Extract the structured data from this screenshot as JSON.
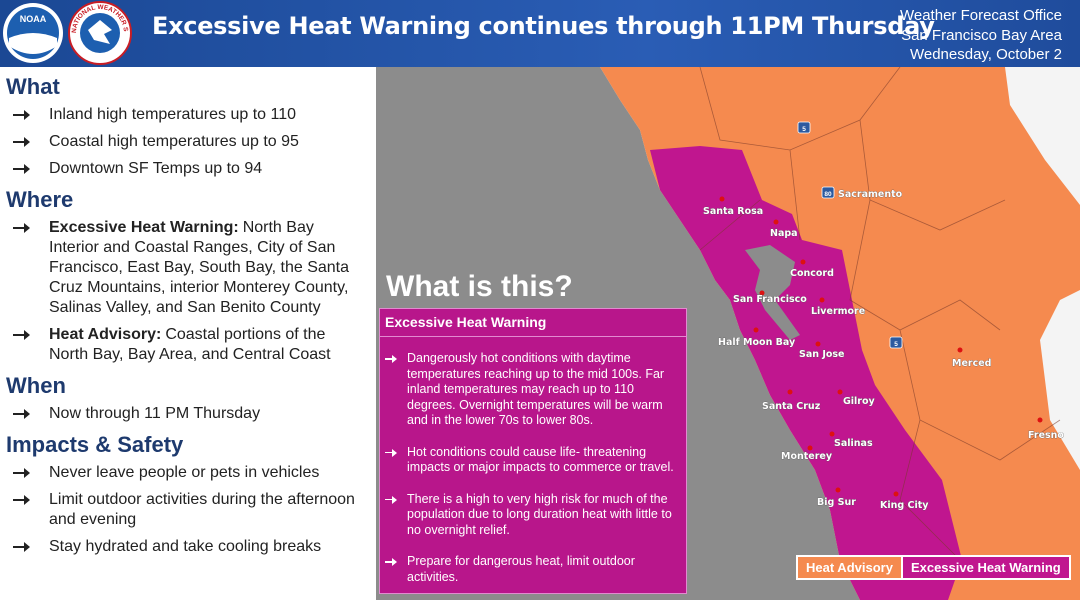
{
  "header": {
    "logos": {
      "noaa": "NOAA",
      "nws": "NATIONAL WEATHER SERVICE"
    },
    "title": "Excessive Heat Warning continues through 11PM Thursday",
    "office": [
      "Weather Forecast Office",
      "San Francisco Bay Area",
      "Wednesday, October 2"
    ]
  },
  "sections": [
    {
      "heading": "What",
      "items": [
        {
          "text": "Inland high temperatures up to 110"
        },
        {
          "text": "Coastal high temperatures up to 95"
        },
        {
          "text": "Downtown SF Temps up to 94"
        }
      ]
    },
    {
      "heading": "Where",
      "items": [
        {
          "bold": "Excessive Heat Warning:",
          "text": "North Bay Interior and Coastal Ranges, City of San Francisco, East Bay, South Bay, the Santa Cruz Mountains, interior Monterey County, Salinas Valley, and San Benito County"
        },
        {
          "bold": "Heat Advisory:",
          "text": "Coastal portions of the North Bay, Bay Area, and Central Coast"
        }
      ]
    },
    {
      "heading": "When",
      "items": [
        {
          "text": "Now through 11 PM Thursday"
        }
      ]
    },
    {
      "heading": "Impacts & Safety",
      "items": [
        {
          "text": "Never leave people or pets in vehicles"
        },
        {
          "text": "Limit outdoor activities during the afternoon and evening"
        },
        {
          "text": "Stay hydrated and take cooling breaks"
        }
      ]
    }
  ],
  "map": {
    "callout": "What is this?",
    "info_box": {
      "title": "Excessive Heat Warning",
      "items": [
        "Dangerously hot conditions with daytime temperatures reaching up to the mid 100s. Far inland temperatures may reach up to 110 degrees. Overnight temperatures will be warm and  in the lower 70s to lower 80s.",
        "Hot conditions could cause life- threatening impacts or major impacts to commerce or travel.",
        "There is a high to very high risk for much of the population due to long duration heat with little to no overnight relief.",
        "Prepare for dangerous heat, limit outdoor activities."
      ]
    },
    "cities": [
      "Santa Rosa",
      "Napa",
      "Sacramento",
      "Concord",
      "San Francisco",
      "Livermore",
      "Half Moon Bay",
      "San Jose",
      "Merced",
      "Santa Cruz",
      "Gilroy",
      "Fresno",
      "Salinas",
      "Monterey",
      "Big Sur",
      "King City"
    ],
    "highways": [
      "5",
      "80",
      "5"
    ],
    "legend": [
      "Heat Advisory",
      "Excessive Heat Warning"
    ]
  }
}
